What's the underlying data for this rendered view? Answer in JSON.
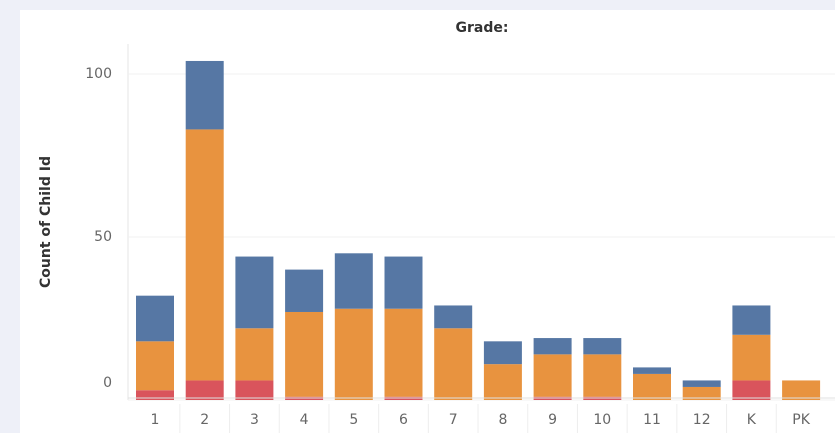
{
  "chart_data": {
    "type": "stacked_bar",
    "title": "Grade:",
    "y_label": "Count of Child Id",
    "categories": [
      "1",
      "2",
      "3",
      "4",
      "5",
      "6",
      "7",
      "8",
      "9",
      "10",
      "11",
      "12",
      "K",
      "PK"
    ],
    "series": [
      {
        "color": "#d9545c",
        "values": [
          3,
          6,
          6,
          1,
          0,
          1,
          0,
          0,
          1,
          1,
          0,
          0,
          6,
          0
        ]
      },
      {
        "color": "#e8933f",
        "values": [
          15,
          77,
          16,
          26,
          28,
          27,
          22,
          11,
          13,
          13,
          8,
          4,
          14,
          6
        ]
      },
      {
        "color": "#5677a4",
        "values": [
          14,
          21,
          22,
          13,
          17,
          16,
          7,
          7,
          5,
          5,
          2,
          2,
          9,
          0
        ]
      }
    ],
    "ylim": [
      0,
      110
    ],
    "yticks": [
      0,
      50,
      100
    ],
    "grid": true
  }
}
